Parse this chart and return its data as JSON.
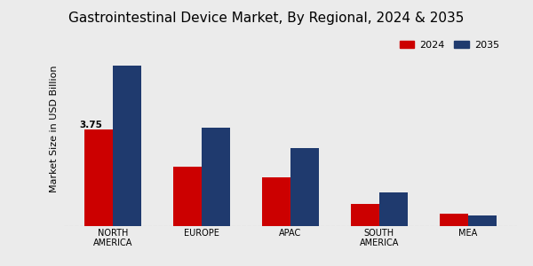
{
  "title": "Gastrointestinal Device Market, By Regional, 2024 & 2035",
  "ylabel": "Market Size in USD Billion",
  "categories": [
    "NORTH\nAMERICA",
    "EUROPE",
    "APAC",
    "SOUTH\nAMERICA",
    "MEA"
  ],
  "values_2024": [
    3.75,
    2.3,
    1.9,
    0.85,
    0.48
  ],
  "values_2035": [
    6.2,
    3.8,
    3.0,
    1.3,
    0.42
  ],
  "color_2024": "#cc0000",
  "color_2035": "#1f3a6e",
  "annotation_label": "3.75",
  "annotation_bar_index": 0,
  "background_color": "#ebebeb",
  "bar_width": 0.32,
  "ylim": [
    0,
    7.5
  ],
  "legend_labels": [
    "2024",
    "2035"
  ],
  "title_fontsize": 11,
  "axis_label_fontsize": 8,
  "tick_fontsize": 7,
  "legend_fontsize": 8
}
